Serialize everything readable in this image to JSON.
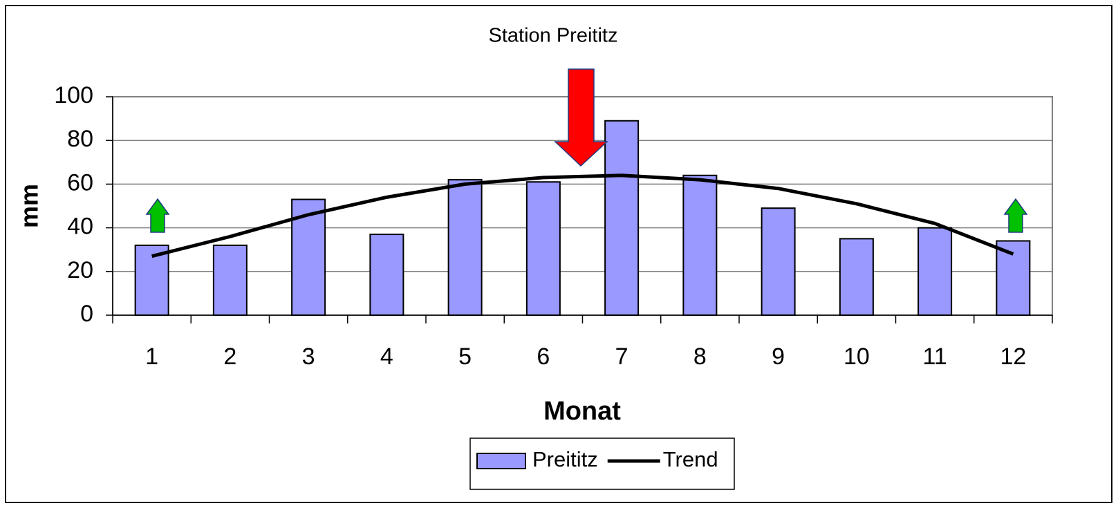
{
  "chart_data": {
    "type": "bar",
    "title": "Station Preititz",
    "xlabel": "Monat",
    "ylabel": "mm",
    "categories": [
      "1",
      "2",
      "3",
      "4",
      "5",
      "6",
      "7",
      "8",
      "9",
      "10",
      "11",
      "12"
    ],
    "series": [
      {
        "name": "Preititz",
        "type": "bar",
        "color": "#9999ff",
        "values": [
          32,
          32,
          53,
          37,
          62,
          61,
          89,
          64,
          49,
          35,
          40,
          34
        ]
      },
      {
        "name": "Trend",
        "type": "line",
        "color": "#000000",
        "values": [
          27,
          36,
          46,
          54,
          60,
          63,
          64,
          62,
          58,
          51,
          42,
          28
        ]
      }
    ],
    "ylim": [
      0,
      100
    ],
    "yticks": [
      0,
      20,
      40,
      60,
      80,
      100
    ],
    "grid": true,
    "legend": "bottom"
  }
}
